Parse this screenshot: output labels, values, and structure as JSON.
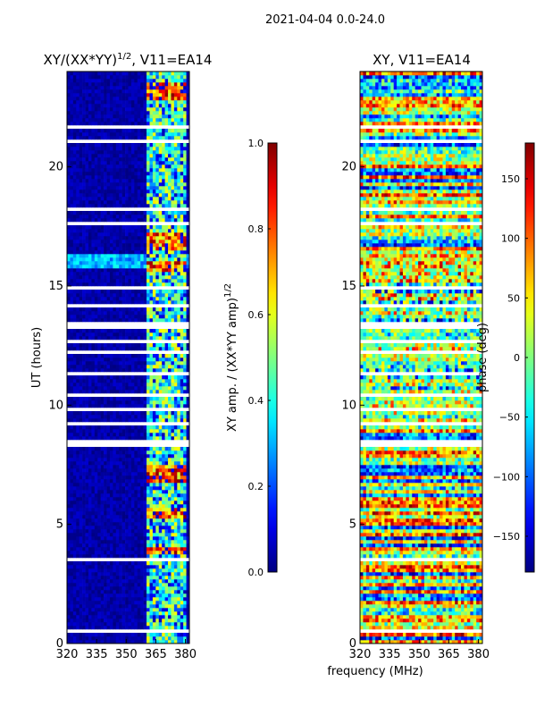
{
  "suptitle": "2021-04-04 0.0-24.0",
  "colormap": "jet",
  "shared_xlabel": "frequency (MHz)",
  "chart_data": [
    {
      "type": "heatmap",
      "title_main": "XY/(XX*YY)",
      "title_sup": "1/2",
      "title_tail": ", V11=EA14",
      "xlabel": "",
      "ylabel": "UT (hours)",
      "xlim": [
        320,
        382
      ],
      "ylim": [
        0,
        24
      ],
      "x_ticks": [
        320,
        335,
        350,
        365,
        380
      ],
      "y_ticks": [
        0,
        5,
        10,
        15,
        20
      ],
      "colorbar": {
        "label_main": "XY amp. / (XX*YY amp)",
        "label_sup": "1/2",
        "range": [
          0.0,
          1.0
        ],
        "ticks": [
          "0.0",
          "0.2",
          "0.4",
          "0.6",
          "0.8",
          "1.0"
        ]
      },
      "bright_band_MHz": [
        361,
        380
      ],
      "hot_intervals_UT": [
        [
          3.7,
          4.1
        ],
        [
          5.2,
          5.7
        ],
        [
          6.8,
          7.5
        ],
        [
          15.6,
          16.1
        ],
        [
          16.5,
          17.2
        ],
        [
          22.8,
          23.5
        ]
      ],
      "flagged_intervals_UT": [
        [
          0.5,
          0.6
        ],
        [
          1.6,
          1.7
        ],
        [
          3.5,
          3.6
        ],
        [
          8.3,
          8.5
        ],
        [
          9.2,
          9.3
        ],
        [
          9.7,
          9.9
        ],
        [
          10.3,
          10.5
        ],
        [
          11.3,
          11.4
        ],
        [
          12.2,
          12.3
        ],
        [
          12.6,
          12.7
        ],
        [
          13.2,
          13.5
        ],
        [
          14.1,
          14.2
        ],
        [
          14.8,
          15.0
        ],
        [
          17.6,
          17.7
        ],
        [
          18.1,
          18.3
        ],
        [
          19.0,
          19.1
        ],
        [
          21.0,
          21.1
        ],
        [
          21.6,
          21.8
        ],
        [
          22.3,
          22.4
        ]
      ]
    },
    {
      "type": "heatmap",
      "title_main": "XY, V11=EA14",
      "title_sup": "",
      "title_tail": "",
      "xlabel": "frequency (MHz)",
      "ylabel": "",
      "xlim": [
        320,
        382
      ],
      "ylim": [
        0,
        24
      ],
      "x_ticks": [
        320,
        335,
        350,
        365,
        380
      ],
      "y_ticks": [
        0,
        5,
        10,
        15,
        20
      ],
      "colorbar": {
        "label_main": "phase (deg)",
        "label_sup": "",
        "range": [
          -180,
          180
        ],
        "ticks": [
          "−150",
          "−100",
          "−50",
          "0",
          "50",
          "100",
          "150"
        ]
      },
      "flagged_intervals_UT": [
        [
          0.5,
          0.6
        ],
        [
          1.6,
          1.7
        ],
        [
          3.5,
          3.6
        ],
        [
          8.3,
          8.5
        ],
        [
          9.2,
          9.3
        ],
        [
          9.7,
          9.9
        ],
        [
          10.3,
          10.5
        ],
        [
          11.3,
          11.4
        ],
        [
          12.2,
          12.3
        ],
        [
          12.6,
          12.7
        ],
        [
          13.2,
          13.5
        ],
        [
          14.1,
          14.2
        ],
        [
          14.8,
          15.0
        ],
        [
          17.6,
          17.7
        ],
        [
          18.1,
          18.3
        ],
        [
          19.0,
          19.1
        ],
        [
          21.0,
          21.1
        ],
        [
          21.6,
          21.8
        ],
        [
          22.3,
          22.4
        ]
      ]
    }
  ]
}
